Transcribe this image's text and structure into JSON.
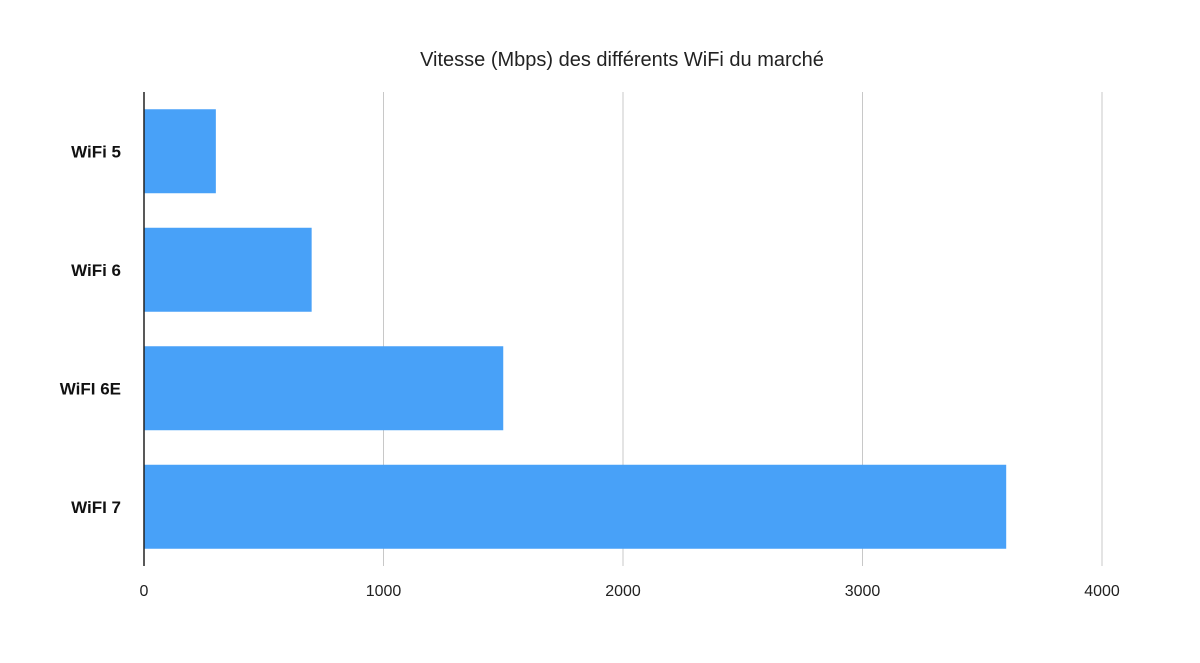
{
  "chart_data": {
    "type": "bar",
    "orientation": "horizontal",
    "title": "Vitesse (Mbps) des différents WiFi du marché",
    "xlabel": "",
    "ylabel": "",
    "categories": [
      "WiFi 5",
      "WiFi 6",
      "WiFI 6E",
      "WiFI 7"
    ],
    "values": [
      300,
      700,
      1500,
      3600
    ],
    "xlim": [
      0,
      4000
    ],
    "x_ticks": [
      "0",
      "1000",
      "2000",
      "3000",
      "4000"
    ],
    "grid": "vertical",
    "legend": "none",
    "bar_color": "#48A1F8"
  }
}
